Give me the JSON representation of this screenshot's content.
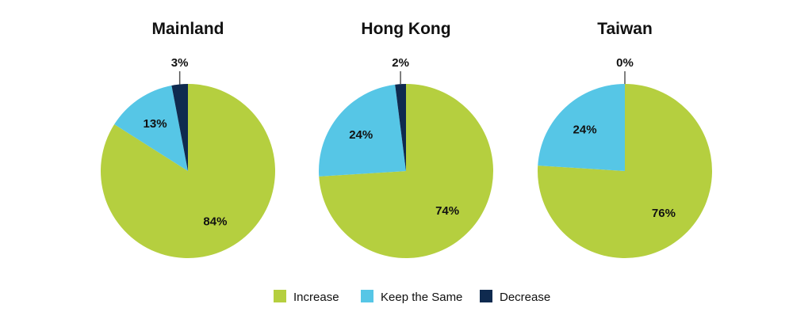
{
  "colors": {
    "increase": "#b5cf3f",
    "keep_the_same": "#56c6e6",
    "decrease": "#0f2a4f",
    "text": "#111111",
    "leader": "#555555"
  },
  "legend": [
    {
      "label": "Increase",
      "color_key": "increase"
    },
    {
      "label": "Keep the Same",
      "color_key": "keep_the_same"
    },
    {
      "label": "Decrease",
      "color_key": "decrease"
    }
  ],
  "chart_data": [
    {
      "type": "pie",
      "title": "Mainland",
      "slices": [
        {
          "name": "Increase",
          "value": 84,
          "label": "84%"
        },
        {
          "name": "Keep the Same",
          "value": 13,
          "label": "13%"
        },
        {
          "name": "Decrease",
          "value": 3,
          "label": "3%"
        }
      ]
    },
    {
      "type": "pie",
      "title": "Hong Kong",
      "slices": [
        {
          "name": "Increase",
          "value": 74,
          "label": "74%"
        },
        {
          "name": "Keep the Same",
          "value": 24,
          "label": "24%"
        },
        {
          "name": "Decrease",
          "value": 2,
          "label": "2%"
        }
      ]
    },
    {
      "type": "pie",
      "title": "Taiwan",
      "slices": [
        {
          "name": "Increase",
          "value": 76,
          "label": "76%"
        },
        {
          "name": "Keep the Same",
          "value": 24,
          "label": "24%"
        },
        {
          "name": "Decrease",
          "value": 0,
          "label": "0%"
        }
      ]
    }
  ]
}
